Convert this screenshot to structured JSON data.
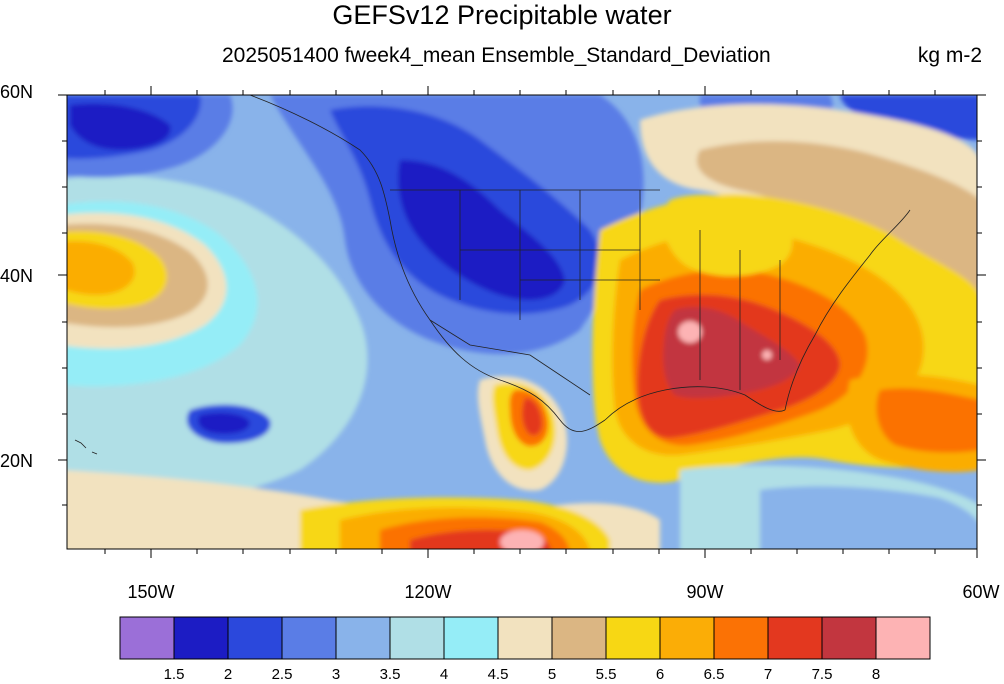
{
  "title": "GEFSv12 Precipitable water",
  "subtitle": "2025051400 fweek4_mean Ensemble_Standard_Deviation",
  "units": "kg m-2",
  "lat_labels": [
    "60N",
    "40N",
    "20N"
  ],
  "lon_labels": [
    "150W",
    "120W",
    "90W",
    "60W"
  ],
  "colorbar": {
    "colors": [
      "#9b6fd8",
      "#1c1cc4",
      "#2b48dc",
      "#5a7de6",
      "#89b3ea",
      "#b0dfe6",
      "#95edf7",
      "#f2e2bf",
      "#dbb683",
      "#f7d714",
      "#fbad06",
      "#fb7205",
      "#e3381f",
      "#c2363f",
      "#fdb3b4"
    ],
    "labels": [
      "1.5",
      "2",
      "2.5",
      "3",
      "3.5",
      "4",
      "4.5",
      "5",
      "5.5",
      "6",
      "6.5",
      "7",
      "7.5",
      "8"
    ]
  },
  "map": {
    "lon_range": [
      -161,
      -60
    ],
    "lat_range": [
      10,
      60
    ],
    "background": "#89b3ea"
  }
}
